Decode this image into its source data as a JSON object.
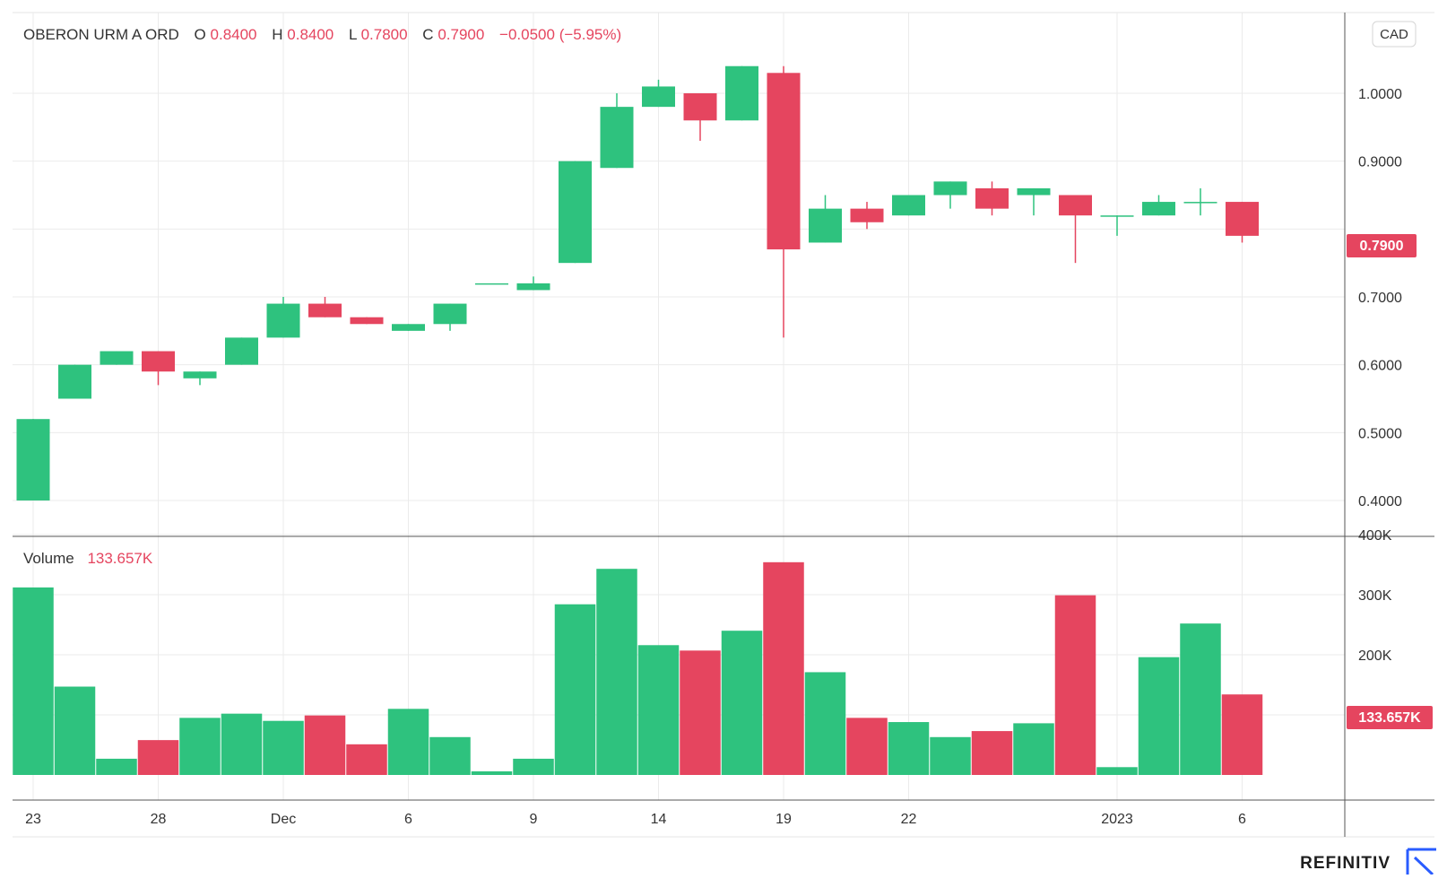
{
  "legend": {
    "symbol": "OBERON URM A ORD",
    "o_label": "O",
    "o_value": "0.8400",
    "h_label": "H",
    "h_value": "0.8400",
    "l_label": "L",
    "l_value": "0.7800",
    "c_label": "C",
    "c_value": "0.7900",
    "change": "−0.0500 (−5.95%)"
  },
  "currency": "CAD",
  "volume_legend": {
    "label": "Volume",
    "value": "133.657K"
  },
  "price_tag": "0.7900",
  "volume_tag": "133.657K",
  "brand": "REFINITIV",
  "colors": {
    "up": "#2ec27e",
    "down": "#e5455f",
    "grid": "#ebebeb",
    "text": "#333333",
    "tag_bg": "#e5455f"
  },
  "chart_data": [
    {
      "type": "candlestick",
      "title": "OBERON URM A ORD",
      "currency": "CAD",
      "ylim": [
        0.372,
        1.05
      ],
      "y_ticks": [
        {
          "value": 0.4,
          "label": "0.4000"
        },
        {
          "value": 0.5,
          "label": "0.5000"
        },
        {
          "value": 0.6,
          "label": "0.6000"
        },
        {
          "value": 0.7,
          "label": "0.7000"
        },
        {
          "value": 0.9,
          "label": "0.9000"
        },
        {
          "value": 1.0,
          "label": "1.0000"
        }
      ],
      "x_ticks": [
        {
          "index": 0,
          "label": "23"
        },
        {
          "index": 3,
          "label": "28"
        },
        {
          "index": 6,
          "label": "Dec"
        },
        {
          "index": 9,
          "label": "6"
        },
        {
          "index": 12,
          "label": "9"
        },
        {
          "index": 15,
          "label": "14"
        },
        {
          "index": 18,
          "label": "19"
        },
        {
          "index": 21,
          "label": "22"
        },
        {
          "index": 26,
          "label": "2023"
        },
        {
          "index": 29,
          "label": "6"
        }
      ],
      "candles": [
        {
          "o": 0.4,
          "h": 0.52,
          "l": 0.4,
          "c": 0.52
        },
        {
          "o": 0.55,
          "h": 0.6,
          "l": 0.55,
          "c": 0.6
        },
        {
          "o": 0.6,
          "h": 0.62,
          "l": 0.6,
          "c": 0.62
        },
        {
          "o": 0.62,
          "h": 0.62,
          "l": 0.57,
          "c": 0.59
        },
        {
          "o": 0.58,
          "h": 0.59,
          "l": 0.57,
          "c": 0.59
        },
        {
          "o": 0.6,
          "h": 0.64,
          "l": 0.6,
          "c": 0.64
        },
        {
          "o": 0.64,
          "h": 0.7,
          "l": 0.64,
          "c": 0.69
        },
        {
          "o": 0.69,
          "h": 0.7,
          "l": 0.67,
          "c": 0.67
        },
        {
          "o": 0.67,
          "h": 0.67,
          "l": 0.66,
          "c": 0.66
        },
        {
          "o": 0.65,
          "h": 0.66,
          "l": 0.65,
          "c": 0.66
        },
        {
          "o": 0.66,
          "h": 0.69,
          "l": 0.65,
          "c": 0.69
        },
        {
          "o": 0.72,
          "h": 0.72,
          "l": 0.72,
          "c": 0.72
        },
        {
          "o": 0.71,
          "h": 0.73,
          "l": 0.71,
          "c": 0.72
        },
        {
          "o": 0.75,
          "h": 0.9,
          "l": 0.75,
          "c": 0.9
        },
        {
          "o": 0.89,
          "h": 1.0,
          "l": 0.89,
          "c": 0.98
        },
        {
          "o": 0.98,
          "h": 1.02,
          "l": 0.98,
          "c": 1.01
        },
        {
          "o": 1.0,
          "h": 1.0,
          "l": 0.93,
          "c": 0.96
        },
        {
          "o": 0.96,
          "h": 1.04,
          "l": 0.96,
          "c": 1.04
        },
        {
          "o": 1.03,
          "h": 1.04,
          "l": 0.64,
          "c": 0.77
        },
        {
          "o": 0.78,
          "h": 0.85,
          "l": 0.78,
          "c": 0.83
        },
        {
          "o": 0.83,
          "h": 0.84,
          "l": 0.8,
          "c": 0.81
        },
        {
          "o": 0.82,
          "h": 0.85,
          "l": 0.82,
          "c": 0.85
        },
        {
          "o": 0.85,
          "h": 0.87,
          "l": 0.83,
          "c": 0.87
        },
        {
          "o": 0.86,
          "h": 0.87,
          "l": 0.82,
          "c": 0.83
        },
        {
          "o": 0.85,
          "h": 0.86,
          "l": 0.82,
          "c": 0.86
        },
        {
          "o": 0.85,
          "h": 0.85,
          "l": 0.75,
          "c": 0.82
        },
        {
          "o": 0.82,
          "h": 0.82,
          "l": 0.79,
          "c": 0.82
        },
        {
          "o": 0.82,
          "h": 0.85,
          "l": 0.82,
          "c": 0.84
        },
        {
          "o": 0.84,
          "h": 0.86,
          "l": 0.82,
          "c": 0.84
        },
        {
          "o": 0.84,
          "h": 0.84,
          "l": 0.78,
          "c": 0.79
        }
      ]
    },
    {
      "type": "bar",
      "title": "Volume",
      "ylim": [
        0,
        400000
      ],
      "y_ticks": [
        {
          "value": 100000,
          "label": "100K"
        },
        {
          "value": 200000,
          "label": "200K"
        },
        {
          "value": 300000,
          "label": "300K"
        },
        {
          "value": 400000,
          "label": "400K"
        }
      ],
      "values": [
        312000,
        147000,
        27000,
        58000,
        95000,
        102000,
        90000,
        99000,
        51000,
        110000,
        63000,
        6000,
        27000,
        284000,
        343000,
        216000,
        207000,
        240000,
        354000,
        171000,
        95000,
        88000,
        63000,
        73000,
        86000,
        299000,
        13000,
        196000,
        252000,
        134000
      ],
      "directions": [
        "up",
        "up",
        "up",
        "down",
        "up",
        "up",
        "up",
        "down",
        "down",
        "up",
        "up",
        "up",
        "up",
        "up",
        "up",
        "up",
        "down",
        "up",
        "down",
        "up",
        "down",
        "up",
        "up",
        "down",
        "up",
        "down",
        "up",
        "up",
        "up",
        "down"
      ]
    }
  ]
}
